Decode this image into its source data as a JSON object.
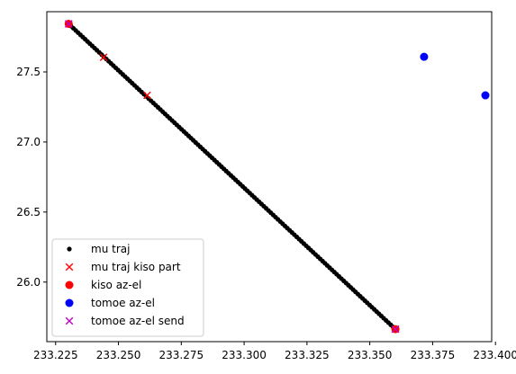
{
  "chart_data": {
    "type": "scatter",
    "title": "",
    "xlabel": "",
    "ylabel": "",
    "xlim": [
      233.2215,
      233.3985
    ],
    "ylim": [
      25.575,
      27.93
    ],
    "xticks": [
      233.225,
      233.25,
      233.275,
      233.3,
      233.325,
      233.35,
      233.375,
      233.4
    ],
    "xtick_labels": [
      "233.225",
      "233.250",
      "233.275",
      "233.300",
      "233.325",
      "233.350",
      "233.375",
      "233.400"
    ],
    "yticks": [
      26.0,
      26.5,
      27.0,
      27.5
    ],
    "ytick_labels": [
      "26.0",
      "26.5",
      "27.0",
      "27.5"
    ],
    "legend_position": "lower-left",
    "grid": false,
    "series": [
      {
        "name": "mu traj",
        "marker": "dot",
        "color": "#000000",
        "line_from": [
          233.2302,
          27.843
        ],
        "line_to": [
          233.3602,
          25.664
        ],
        "count": 140
      },
      {
        "name": "mu traj kiso part",
        "marker": "x",
        "color": "#ff0000",
        "x": [
          233.2302,
          233.2441,
          233.2614,
          233.3602
        ],
        "y": [
          27.843,
          27.605,
          27.333,
          25.664
        ]
      },
      {
        "name": "kiso az-el",
        "marker": "circle",
        "color": "#ff0000",
        "x": [
          233.2302,
          233.3602
        ],
        "y": [
          27.843,
          25.664
        ]
      },
      {
        "name": "tomoe az-el",
        "marker": "circle",
        "color": "#0000ff",
        "x": [
          233.3716,
          233.396
        ],
        "y": [
          27.608,
          27.333
        ]
      },
      {
        "name": "tomoe az-el send",
        "marker": "x",
        "color": "#bf00bf",
        "x": [
          233.2302,
          233.3602
        ],
        "y": [
          27.843,
          25.664
        ]
      }
    ]
  }
}
